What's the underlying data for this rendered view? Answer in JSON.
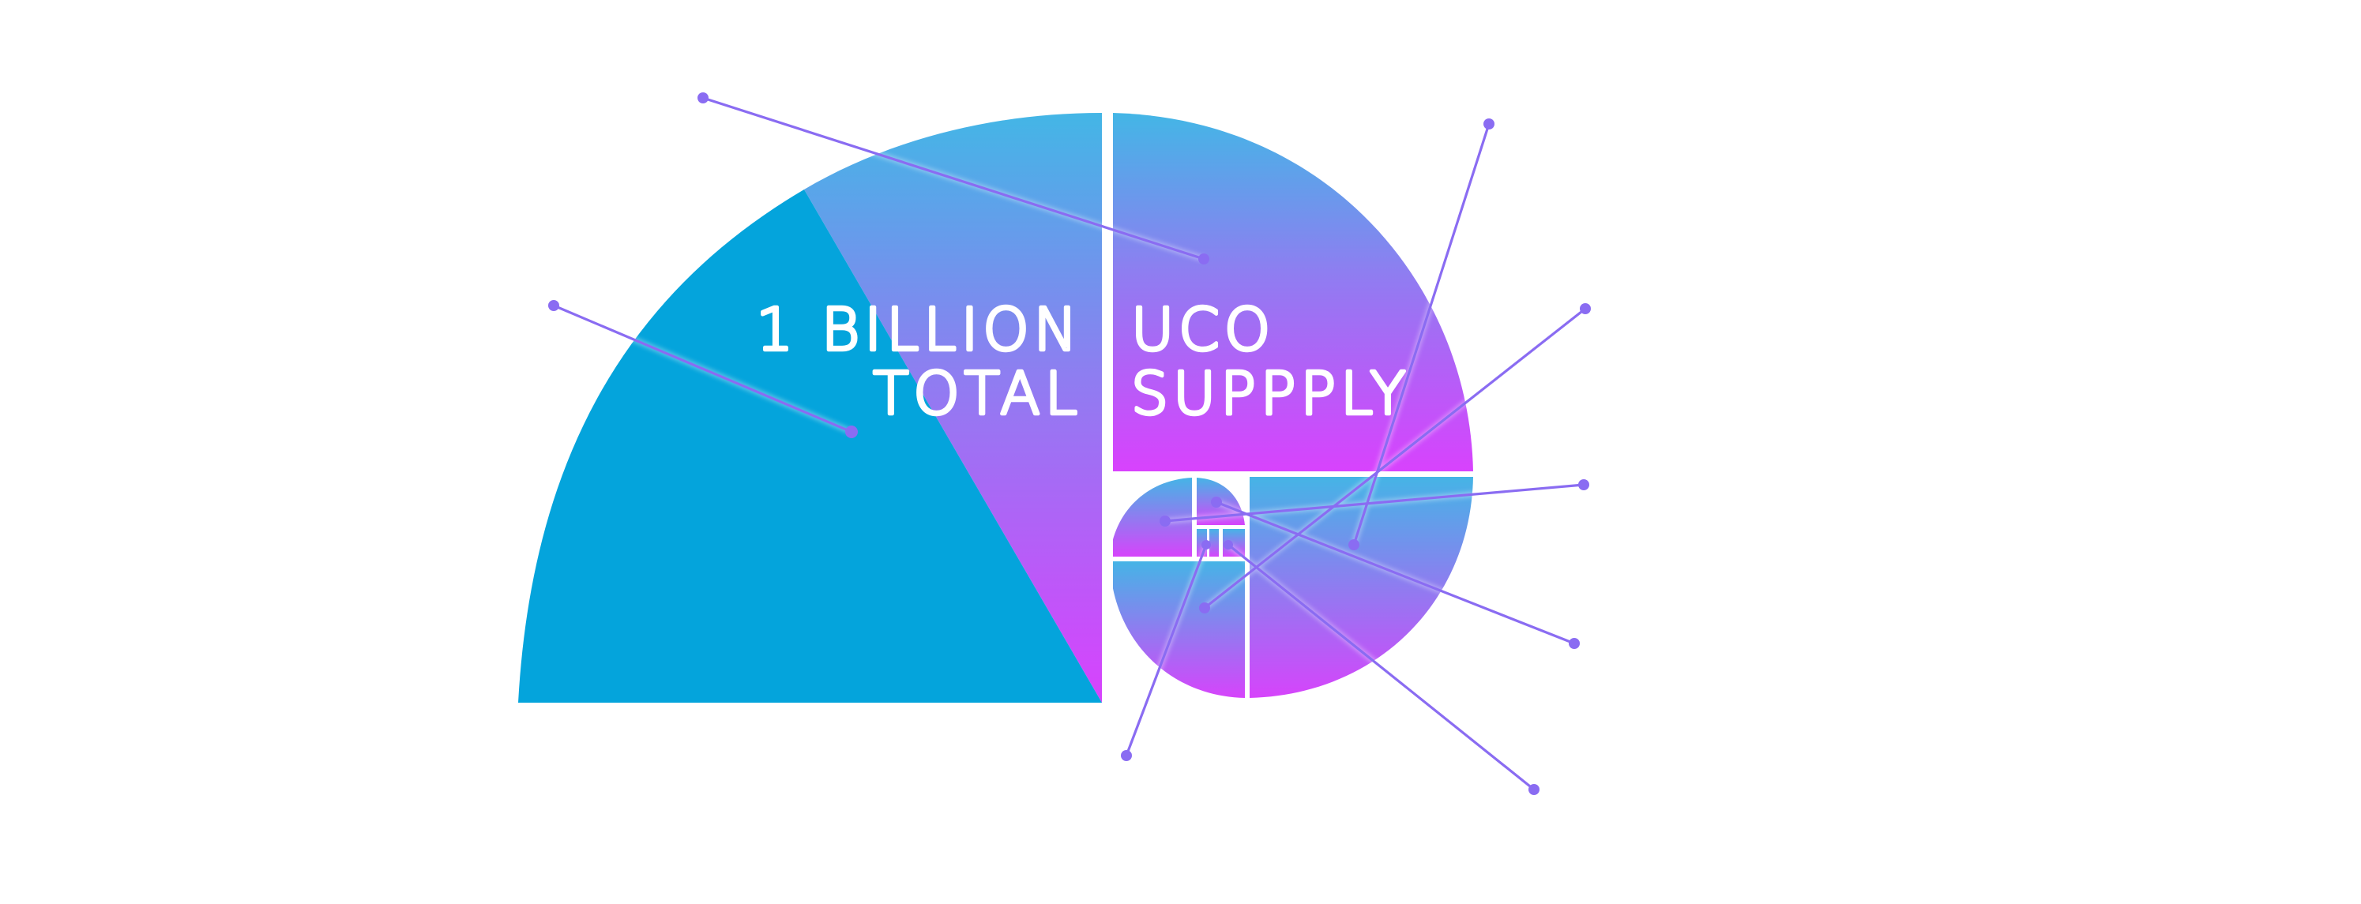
{
  "title": {
    "line1_left": "1 BILLION",
    "line1_right": "UCO",
    "line2_left": "TOTAL",
    "line2_right": "SUPPPLY"
  },
  "colors": {
    "background": "#ffffff",
    "blue": "#04a4dc",
    "cyan_top": "#43b6e6",
    "violet_mid": "#8e7af1",
    "magenta": "#d845fb",
    "line": "#8a6cf2",
    "text": "#ffffff"
  }
}
